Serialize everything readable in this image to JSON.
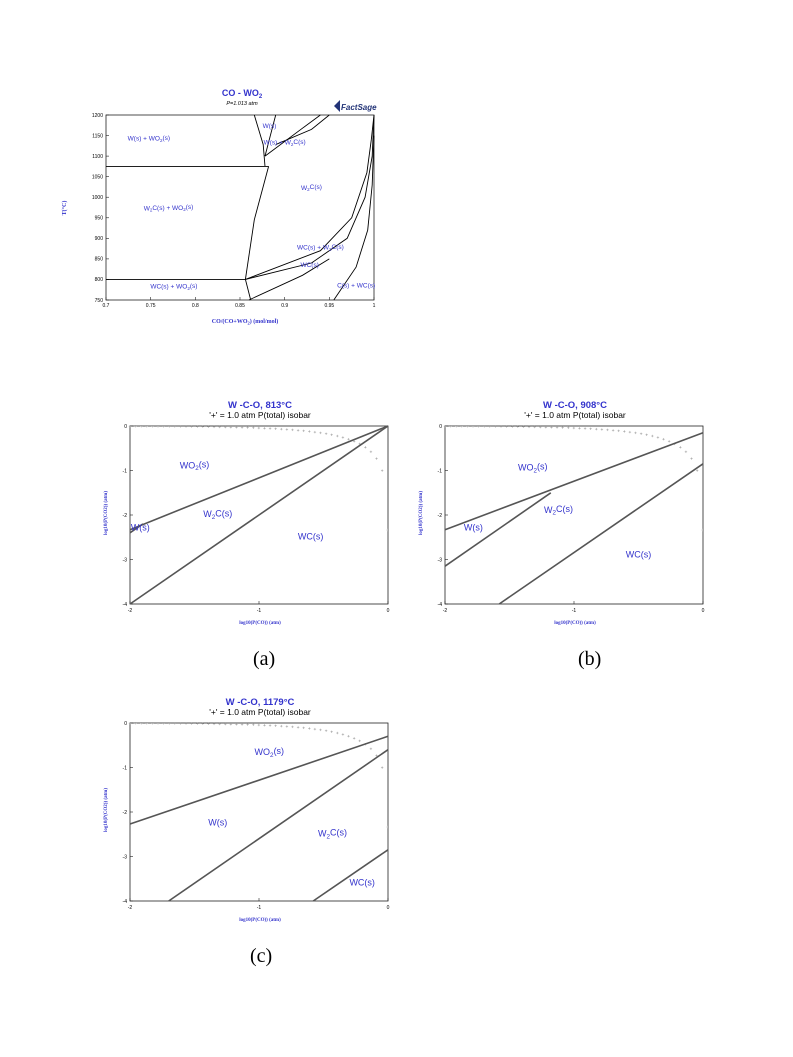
{
  "colors": {
    "label": "#3333cc",
    "line": "#000000",
    "panel_line": "#555555",
    "isobar": "#999999",
    "frame": "#222222"
  },
  "chart_data": [
    {
      "type": "phase-diagram",
      "title": "CO - WO",
      "title_sub": "2",
      "subtitle": "P=1.013 atm",
      "logo": "FactSage",
      "xlabel": "CO/(CO+WO",
      "xlabel_sub": "2",
      "xlabel_tail": ") (mol/mol)",
      "ylabel": "T(°C)",
      "xlim": [
        0.7,
        1.0
      ],
      "ylim": [
        750,
        1200
      ],
      "xticks": [
        "0.7",
        "0.75",
        "0.8",
        "0.85",
        "0.9",
        "0.95",
        "1"
      ],
      "yticks": [
        "750",
        "800",
        "850",
        "900",
        "950",
        "1000",
        "1050",
        "1100",
        "1150",
        "1200"
      ],
      "regions": [
        {
          "label": "W(s) + WO2(s)",
          "x": 0.748,
          "y": 1138
        },
        {
          "label": "W(s)",
          "x": 0.883,
          "y": 1168
        },
        {
          "label": "W(s) + W2C(s)",
          "x": 0.9,
          "y": 1128
        },
        {
          "label": "W2C(s)",
          "x": 0.93,
          "y": 1018
        },
        {
          "label": "W2C(s) + WO2(s)",
          "x": 0.77,
          "y": 968
        },
        {
          "label": "WC(s) + W2C(s)",
          "x": 0.94,
          "y": 873
        },
        {
          "label": "WC(s)",
          "x": 0.928,
          "y": 830
        },
        {
          "label": "WC(s) + WO2(s)",
          "x": 0.776,
          "y": 778
        },
        {
          "label": "C(s) + WC(s)",
          "x": 0.98,
          "y": 780
        }
      ],
      "lines": [
        {
          "name": "W/WO2 eutectoid",
          "points": [
            [
              0.7,
              1075
            ],
            [
              0.882,
              1075
            ]
          ]
        },
        {
          "name": "W2C/WO2 eutectoid",
          "points": [
            [
              0.7,
              800
            ],
            [
              0.856,
              800
            ]
          ]
        },
        {
          "name": "W boundary left",
          "points": [
            [
              0.866,
              1200
            ],
            [
              0.876,
              1128
            ],
            [
              0.878,
              1075
            ]
          ]
        },
        {
          "name": "W boundary right",
          "points": [
            [
              0.89,
              1200
            ],
            [
              0.878,
              1100
            ]
          ]
        },
        {
          "name": "W2C boundary",
          "points": [
            [
              0.882,
              1075
            ],
            [
              0.866,
              945
            ],
            [
              0.856,
              800
            ],
            [
              0.862,
              750
            ]
          ]
        },
        {
          "name": "W+W2C upper",
          "points": [
            [
              0.878,
              1100
            ],
            [
              0.92,
              1168
            ],
            [
              0.94,
              1200
            ]
          ]
        },
        {
          "name": "W+W2C lower",
          "points": [
            [
              0.89,
              1128
            ],
            [
              0.93,
              1165
            ],
            [
              0.95,
              1200
            ]
          ]
        },
        {
          "name": "WC/W2C upper",
          "points": [
            [
              0.856,
              800
            ],
            [
              0.94,
              870
            ],
            [
              0.975,
              950
            ],
            [
              0.992,
              1060
            ],
            [
              0.997,
              1140
            ],
            [
              1.0,
              1200
            ]
          ]
        },
        {
          "name": "WC/W2C lower",
          "points": [
            [
              0.856,
              800
            ],
            [
              0.93,
              840
            ],
            [
              0.97,
              900
            ],
            [
              0.99,
              1000
            ],
            [
              0.998,
              1100
            ],
            [
              1.0,
              1200
            ]
          ]
        },
        {
          "name": "WC/C",
          "points": [
            [
              0.955,
              750
            ],
            [
              0.98,
              830
            ],
            [
              0.993,
              920
            ],
            [
              0.998,
              1030
            ],
            [
              1.0,
              1150
            ]
          ]
        },
        {
          "name": "W2C/WC lower",
          "points": [
            [
              0.86,
              750
            ],
            [
              0.92,
              810
            ],
            [
              0.95,
              850
            ]
          ]
        }
      ]
    },
    {
      "type": "predominance",
      "panel": "(a)",
      "title": "W -C-O, 813°C",
      "subtitle": "'+' = 1.0 atm P(total) isobar",
      "xlabel": "log10(P(CO)) (atm)",
      "ylabel": "log10(P(CO2)) (atm)",
      "xlim": [
        -2,
        0
      ],
      "ylim": [
        -4,
        0
      ],
      "xticks": [
        "-2",
        "-1",
        "0"
      ],
      "yticks": [
        "0",
        "-1",
        "-2",
        "-3",
        "-4"
      ],
      "regions": [
        {
          "label": "WO2(s)",
          "x": -1.5,
          "y": -0.95
        },
        {
          "label": "W2C(s)",
          "x": -1.32,
          "y": -2.05
        },
        {
          "label": "WC(s)",
          "x": -0.6,
          "y": -2.55
        },
        {
          "label": "W(s)",
          "x": -1.92,
          "y": -2.35
        }
      ],
      "lines": [
        {
          "points": [
            [
              -2,
              -2.33
            ],
            [
              0,
              0
            ]
          ]
        },
        {
          "points": [
            [
              -2,
              -4.0
            ],
            [
              0,
              0
            ]
          ]
        },
        {
          "points": [
            [
              -2,
              -2.4
            ],
            [
              -1.9,
              -2.2
            ]
          ]
        }
      ]
    },
    {
      "type": "predominance",
      "panel": "(b)",
      "title": "W -C-O, 908°C",
      "subtitle": "'+' = 1.0 atm P(total) isobar",
      "xlabel": "log10(P(CO)) (atm)",
      "ylabel": "log10(P(CO2)) (atm)",
      "xlim": [
        -2,
        0
      ],
      "ylim": [
        -4,
        0
      ],
      "xticks": [
        "-2",
        "-1",
        "0"
      ],
      "yticks": [
        "0",
        "-1",
        "-2",
        "-3",
        "-4"
      ],
      "regions": [
        {
          "label": "WO2(s)",
          "x": -1.32,
          "y": -1.0
        },
        {
          "label": "W2C(s)",
          "x": -1.12,
          "y": -1.95
        },
        {
          "label": "W(s)",
          "x": -1.78,
          "y": -2.35
        },
        {
          "label": "WC(s)",
          "x": -0.5,
          "y": -2.95
        }
      ],
      "lines": [
        {
          "points": [
            [
              -2,
              -2.33
            ],
            [
              0,
              -0.15
            ]
          ]
        },
        {
          "points": [
            [
              -2,
              -3.15
            ],
            [
              -1.18,
              -1.5
            ]
          ]
        },
        {
          "points": [
            [
              -1.58,
              -4.0
            ],
            [
              0,
              -0.85
            ]
          ]
        }
      ]
    },
    {
      "type": "predominance",
      "panel": "(c)",
      "title": "W -C-O, 1179°C",
      "subtitle": "'+' = 1.0 atm P(total) isobar",
      "xlabel": "log10(P(CO)) (atm)",
      "ylabel": "log10(P(CO2)) (atm)",
      "xlim": [
        -2,
        0
      ],
      "ylim": [
        -4,
        0
      ],
      "xticks": [
        "-2",
        "-1",
        "0"
      ],
      "yticks": [
        "0",
        "-1",
        "-2",
        "-3",
        "-4"
      ],
      "regions": [
        {
          "label": "WO2(s)",
          "x": -0.92,
          "y": -0.72
        },
        {
          "label": "W(s)",
          "x": -1.32,
          "y": -2.3
        },
        {
          "label": "W2C(s)",
          "x": -0.43,
          "y": -2.55
        },
        {
          "label": "WC(s)",
          "x": -0.2,
          "y": -3.65
        }
      ],
      "lines": [
        {
          "points": [
            [
              -2,
              -2.27
            ],
            [
              0,
              -0.3
            ]
          ]
        },
        {
          "points": [
            [
              -1.7,
              -4.0
            ],
            [
              0,
              -0.6
            ]
          ]
        },
        {
          "points": [
            [
              -0.58,
              -4.0
            ],
            [
              0,
              -2.85
            ]
          ]
        }
      ]
    }
  ]
}
